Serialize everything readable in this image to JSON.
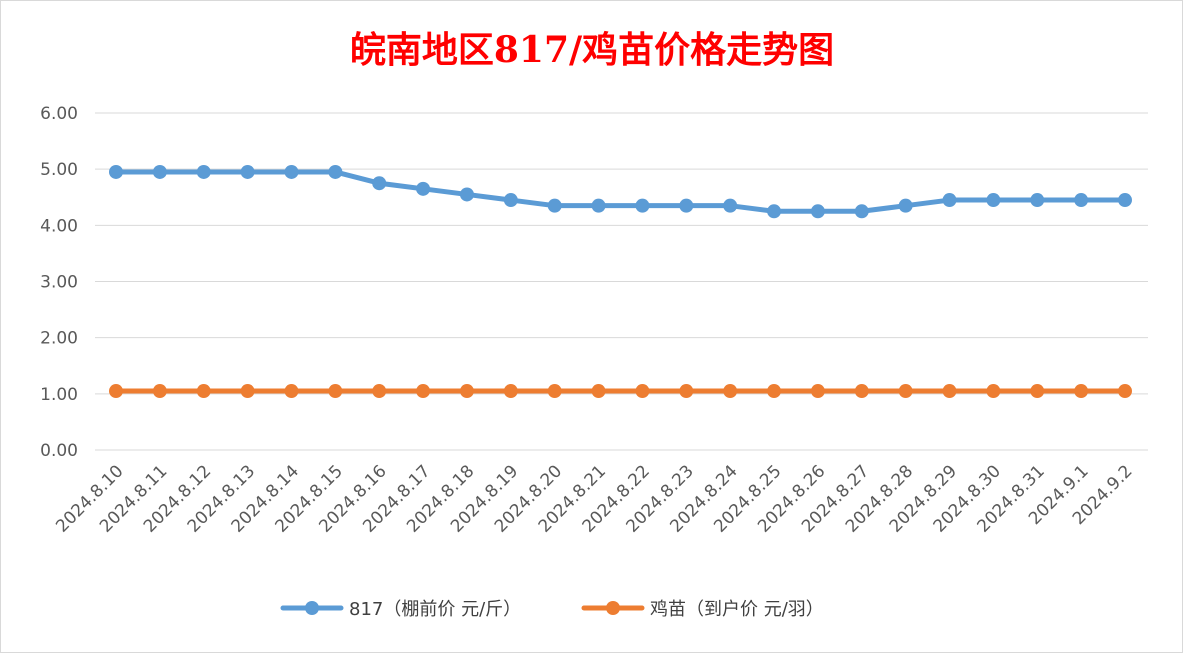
{
  "chart_data": {
    "type": "line",
    "title": "皖南地区817/鸡苗价格走势图",
    "title_color": "#ff0000",
    "categories": [
      "2024.8.10",
      "2024.8.11",
      "2024.8.12",
      "2024.8.13",
      "2024.8.14",
      "2024.8.15",
      "2024.8.16",
      "2024.8.17",
      "2024.8.18",
      "2024.8.19",
      "2024.8.20",
      "2024.8.21",
      "2024.8.22",
      "2024.8.23",
      "2024.8.24",
      "2024.8.25",
      "2024.8.26",
      "2024.8.27",
      "2024.8.28",
      "2024.8.29",
      "2024.8.30",
      "2024.8.31",
      "2024.9.1",
      "2024.9.2"
    ],
    "series": [
      {
        "name": "817（棚前价 元/斤）",
        "color": "#5b9bd5",
        "values": [
          4.95,
          4.95,
          4.95,
          4.95,
          4.95,
          4.95,
          4.75,
          4.65,
          4.55,
          4.45,
          4.35,
          4.35,
          4.35,
          4.35,
          4.35,
          4.25,
          4.25,
          4.25,
          4.35,
          4.45,
          4.45,
          4.45,
          4.45,
          4.45
        ]
      },
      {
        "name": "鸡苗（到户价 元/羽）",
        "color": "#ed7d31",
        "values": [
          1.05,
          1.05,
          1.05,
          1.05,
          1.05,
          1.05,
          1.05,
          1.05,
          1.05,
          1.05,
          1.05,
          1.05,
          1.05,
          1.05,
          1.05,
          1.05,
          1.05,
          1.05,
          1.05,
          1.05,
          1.05,
          1.05,
          1.05,
          1.05
        ]
      }
    ],
    "ylim": [
      0,
      6
    ],
    "yticks": [
      "0.00",
      "1.00",
      "2.00",
      "3.00",
      "4.00",
      "5.00",
      "6.00"
    ],
    "grid": true,
    "legend_position": "bottom",
    "xlabel": "",
    "ylabel": ""
  }
}
